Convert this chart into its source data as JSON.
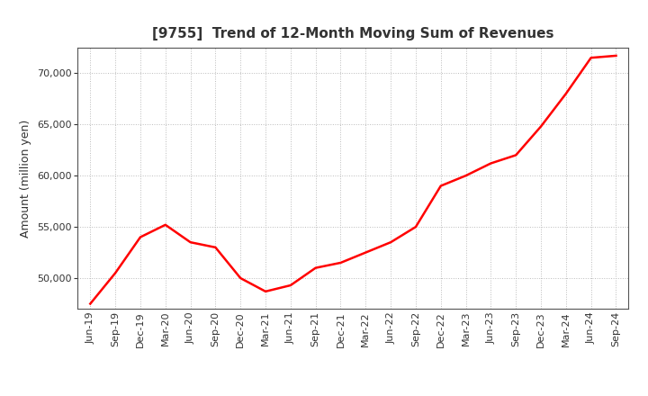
{
  "title": "[9755]  Trend of 12-Month Moving Sum of Revenues",
  "ylabel": "Amount (million yen)",
  "line_color": "#FF0000",
  "line_width": 1.8,
  "background_color": "#FFFFFF",
  "grid_color": "#BBBBBB",
  "ylim": [
    47000,
    72500
  ],
  "yticks": [
    50000,
    55000,
    60000,
    65000,
    70000
  ],
  "x_labels": [
    "Jun-19",
    "Sep-19",
    "Dec-19",
    "Mar-20",
    "Jun-20",
    "Sep-20",
    "Dec-20",
    "Mar-21",
    "Jun-21",
    "Sep-21",
    "Dec-21",
    "Mar-22",
    "Jun-22",
    "Sep-22",
    "Dec-22",
    "Mar-23",
    "Jun-23",
    "Sep-23",
    "Dec-23",
    "Mar-24",
    "Jun-24",
    "Sep-24"
  ],
  "values": [
    47500,
    50500,
    54000,
    55200,
    53500,
    53000,
    50000,
    48700,
    49300,
    51000,
    51500,
    52500,
    53500,
    55000,
    59000,
    60000,
    61200,
    62000,
    64800,
    68000,
    71500,
    71700
  ],
  "title_fontsize": 11,
  "ylabel_fontsize": 9,
  "tick_labelsize": 8,
  "figsize": [
    7.2,
    4.4
  ],
  "dpi": 100
}
